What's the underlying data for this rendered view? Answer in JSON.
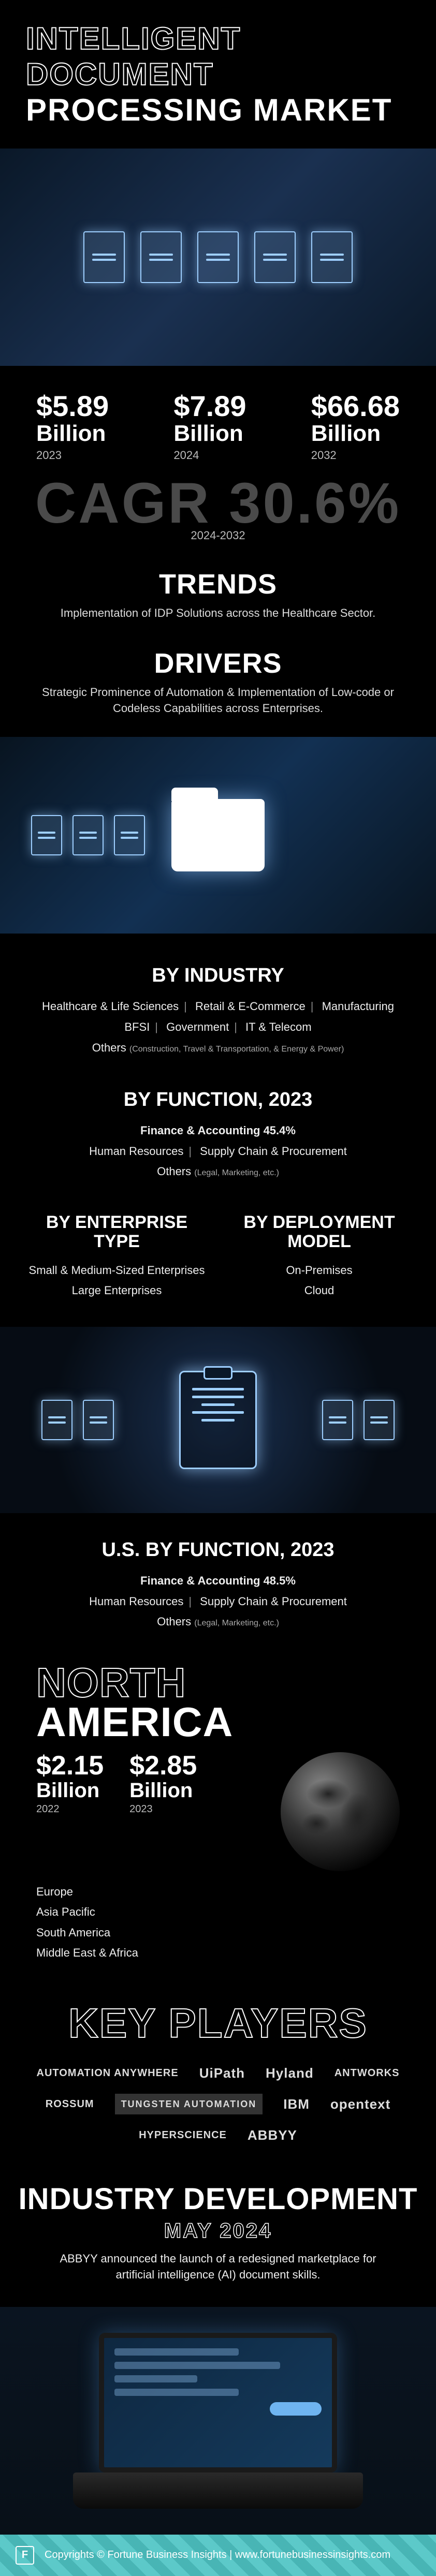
{
  "header": {
    "line1": "INTELLIGENT DOCUMENT",
    "line2": "PROCESSING MARKET"
  },
  "market_sizes": [
    {
      "value": "$5.89",
      "unit": "Billion",
      "year": "2023"
    },
    {
      "value": "$7.89",
      "unit": "Billion",
      "year": "2024"
    },
    {
      "value": "$66.68",
      "unit": "Billion",
      "year": "2032"
    }
  ],
  "cagr": {
    "label": "CAGR 30.6%",
    "period": "2024-2032",
    "color": "#4a4a4a"
  },
  "trends": {
    "title": "TRENDS",
    "text": "Implementation of IDP Solutions across the Healthcare Sector."
  },
  "drivers": {
    "title": "DRIVERS",
    "text": "Strategic Prominence of Automation & Implementation of Low-code or Codeless Capabilities across Enterprises."
  },
  "by_industry": {
    "title": "BY INDUSTRY",
    "row1": [
      "Healthcare & Life Sciences",
      "Retail & E-Commerce",
      "Manufacturing"
    ],
    "row2": [
      "BFSI",
      "Government",
      "IT & Telecom"
    ],
    "others_label": "Others",
    "others_note": "(Construction, Travel & Transportation, & Energy & Power)"
  },
  "by_function": {
    "title": "BY FUNCTION, 2023",
    "lead": "Finance & Accounting 45.4%",
    "row": [
      "Human Resources",
      "Supply Chain & Procurement"
    ],
    "others_label": "Others",
    "others_note": "(Legal, Marketing, etc.)"
  },
  "by_enterprise": {
    "title": "BY ENTERPRISE TYPE",
    "items": [
      "Small & Medium-Sized Enterprises",
      "Large Enterprises"
    ]
  },
  "by_deployment": {
    "title": "BY DEPLOYMENT MODEL",
    "items": [
      "On-Premises",
      "Cloud"
    ]
  },
  "us_by_function": {
    "title": "U.S. BY FUNCTION, 2023",
    "lead": "Finance & Accounting 48.5%",
    "row": [
      "Human Resources",
      "Supply Chain & Procurement"
    ],
    "others_label": "Others",
    "others_note": "(Legal, Marketing, etc.)"
  },
  "north_america": {
    "line1": "NORTH",
    "line2": "AMERICA",
    "values": [
      {
        "value": "$2.15",
        "unit": "Billion",
        "year": "2022"
      },
      {
        "value": "$2.85",
        "unit": "Billion",
        "year": "2023"
      }
    ],
    "regions": [
      "Europe",
      "Asia Pacific",
      "South America",
      "Middle East & Africa"
    ]
  },
  "key_players": {
    "title": "KEY PLAYERS",
    "logos": [
      {
        "text": "AUTOMATION ANYWHERE",
        "cls": "small"
      },
      {
        "text": "UiPath",
        "cls": ""
      },
      {
        "text": "Hyland",
        "cls": ""
      },
      {
        "text": "ANTWORKS",
        "cls": "small"
      },
      {
        "text": "ROSSUM",
        "cls": "small"
      },
      {
        "text": "TUNGSTEN AUTOMATION",
        "cls": "box"
      },
      {
        "text": "IBM",
        "cls": "bold"
      },
      {
        "text": "opentext",
        "cls": "bold"
      },
      {
        "text": "HYPERSCIENCE",
        "cls": "small"
      },
      {
        "text": "ABBYY",
        "cls": "bold"
      }
    ]
  },
  "industry_dev": {
    "title": "INDUSTRY DEVELOPMENT",
    "date": "MAY 2024",
    "text": "ABBYY announced the launch of a redesigned marketplace for artificial intelligence (AI) document skills."
  },
  "footer": {
    "logo_char": "F",
    "text": "Copyrights © Fortune Business Insights | www.fortunebusinessinsights.com"
  },
  "colors": {
    "background": "#000000",
    "text_primary": "#ffffff",
    "text_muted": "#bbbbbb",
    "cagr_gray": "#4a4a4a",
    "accent_blue": "#9ecfff",
    "footer_teal": "#5cc9c9"
  }
}
